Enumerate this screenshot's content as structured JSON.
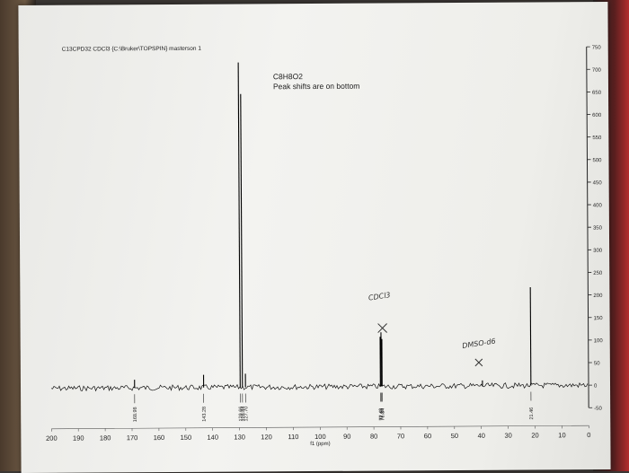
{
  "header": "C13CPD32 CDCl3 {C:\\Bruker\\TOPSPIN} masterson 1",
  "annotation": {
    "formula": "C8H8O2",
    "note": "Peak shifts are on bottom"
  },
  "handwritten": {
    "solvent1": "CDCl3",
    "solvent2": "DMSO-d6"
  },
  "chart_data": {
    "type": "line",
    "title": "",
    "xlabel": "f1 (ppm)",
    "ylabel": "",
    "xlim": [
      200,
      0
    ],
    "ylim": [
      -50,
      750
    ],
    "x_ticks": [
      200,
      190,
      180,
      170,
      160,
      150,
      140,
      130,
      120,
      110,
      100,
      90,
      80,
      70,
      60,
      50,
      40,
      30,
      20,
      10,
      0
    ],
    "x_tick_labels": [
      "200",
      "190",
      "180",
      "170",
      "160",
      "150",
      "140",
      "130",
      "120",
      "110",
      "100",
      "90",
      "80",
      "70",
      "60",
      "50",
      "40",
      "30",
      "20",
      "10",
      "0"
    ],
    "y_ticks": [
      -50,
      0,
      50,
      100,
      150,
      200,
      250,
      300,
      350,
      400,
      450,
      500,
      550,
      600,
      650,
      700,
      750
    ],
    "y_tick_labels": [
      "-50",
      "0",
      "50",
      "100",
      "150",
      "200",
      "250",
      "300",
      "350",
      "400",
      "450",
      "500",
      "550",
      "600",
      "650",
      "700",
      "750"
    ],
    "peaks": [
      {
        "ppm": 168.98,
        "height": 18,
        "label": "168.98"
      },
      {
        "ppm": 143.28,
        "height": 28,
        "label": "143.28"
      },
      {
        "ppm": 129.66,
        "height": 720,
        "label": "129.66"
      },
      {
        "ppm": 128.84,
        "height": 650,
        "label": "128.84"
      },
      {
        "ppm": 127.7,
        "height": 30,
        "label": "127.70"
      },
      {
        "ppm": 77.48,
        "height": 110,
        "label": "77.48"
      },
      {
        "ppm": 77.16,
        "height": 120,
        "label": "77.16"
      },
      {
        "ppm": 76.84,
        "height": 105,
        "label": "76.84"
      },
      {
        "ppm": 39.5,
        "height": 12,
        "label": ""
      },
      {
        "ppm": 21.46,
        "height": 218,
        "label": "21.46"
      }
    ],
    "grid": false,
    "legend": "none"
  }
}
